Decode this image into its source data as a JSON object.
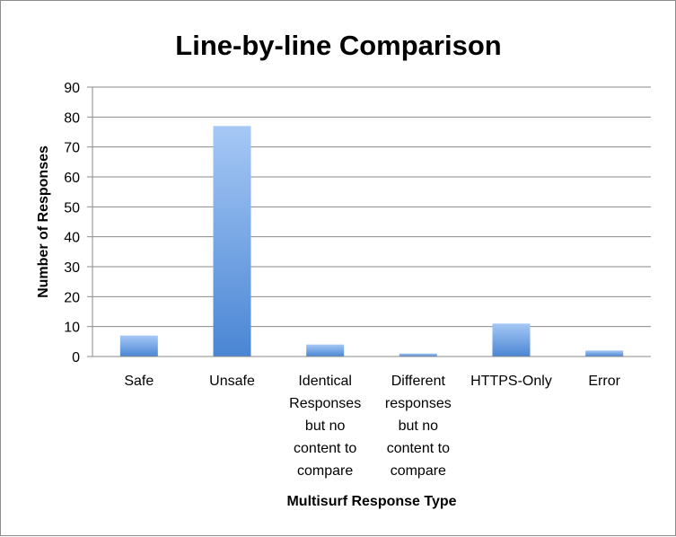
{
  "chart_data": {
    "type": "bar",
    "title": "Line-by-line Comparison",
    "xlabel": "Multisurf Response Type",
    "ylabel": "Number of Responses",
    "categories": [
      [
        "Safe"
      ],
      [
        "Unsafe"
      ],
      [
        "Identical",
        "Responses",
        "but no",
        "content to",
        "compare"
      ],
      [
        "Different",
        "responses",
        "but no",
        "content to",
        "compare"
      ],
      [
        "HTTPS-Only"
      ],
      [
        "Error"
      ]
    ],
    "values": [
      7,
      77,
      4,
      1,
      11,
      2
    ],
    "ylim": [
      0,
      90
    ],
    "yticks": [
      0,
      10,
      20,
      30,
      40,
      50,
      60,
      70,
      80,
      90
    ],
    "grid": true,
    "legend": "none",
    "bar_color_top": "#a6c8f5",
    "bar_color_bottom": "#4a86d4"
  }
}
